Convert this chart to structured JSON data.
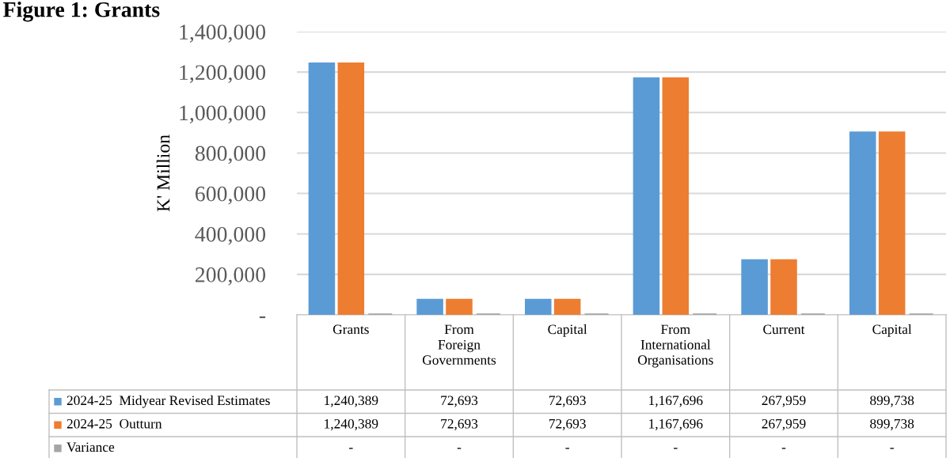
{
  "chart_data": {
    "type": "bar",
    "title": "Figure 1: Grants",
    "ylabel": "K' Million",
    "categories": [
      "Grants",
      "From Foreign Governments",
      "Capital",
      "From International Organisations",
      "Current",
      "Capital"
    ],
    "series": [
      {
        "name": "2024-25  Midyear Revised Estimates",
        "color": "#5b9bd5",
        "values": [
          1240389,
          72693,
          72693,
          1167696,
          267959,
          899738
        ],
        "value_labels": [
          "1,240,389",
          "72,693",
          "72,693",
          "1,167,696",
          "267,959",
          "899,738"
        ]
      },
      {
        "name": "2024-25  Outturn",
        "color": "#ed7d31",
        "values": [
          1240389,
          72693,
          72693,
          1167696,
          267959,
          899738
        ],
        "value_labels": [
          "1,240,389",
          "72,693",
          "72,693",
          "1,167,696",
          "267,959",
          "899,738"
        ]
      },
      {
        "name": "Variance",
        "color": "#a5a5a5",
        "values": [
          0,
          0,
          0,
          0,
          0,
          0
        ],
        "value_labels": [
          "-",
          "-",
          "-",
          "-",
          "-",
          "-"
        ]
      }
    ],
    "ylim": [
      0,
      1400000
    ],
    "yticks": [
      {
        "value": 0,
        "label": "-"
      },
      {
        "value": 200000,
        "label": "200,000"
      },
      {
        "value": 400000,
        "label": "400,000"
      },
      {
        "value": 600000,
        "label": "600,000"
      },
      {
        "value": 800000,
        "label": "800,000"
      },
      {
        "value": 1000000,
        "label": "1,000,000"
      },
      {
        "value": 1200000,
        "label": "1,200,000"
      },
      {
        "value": 1400000,
        "label": "1,400,000"
      }
    ],
    "grid": "y",
    "legend": "bottom"
  }
}
